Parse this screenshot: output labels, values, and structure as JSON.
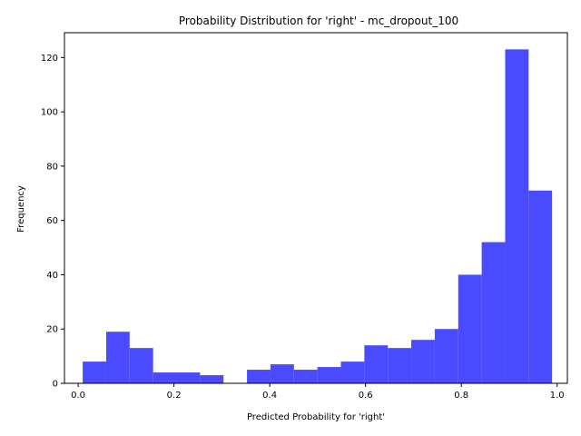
{
  "chart_data": {
    "type": "histogram",
    "title": "Probability Distribution for 'right' - mc_dropout_100",
    "xlabel": "Predicted Probability for 'right'",
    "ylabel": "Frequency",
    "xlim": [
      -0.0286,
      1.0214
    ],
    "ylim": [
      0,
      129.15
    ],
    "xticks": [
      0.0,
      0.2,
      0.4,
      0.6,
      0.8,
      1.0
    ],
    "xtick_labels": [
      "0.0",
      "0.2",
      "0.4",
      "0.6",
      "0.8",
      "1.0"
    ],
    "yticks": [
      0,
      20,
      40,
      60,
      80,
      100,
      120
    ],
    "ytick_labels": [
      "0",
      "20",
      "40",
      "60",
      "80",
      "100",
      "120"
    ],
    "bin_edges": [
      0.0095,
      0.0585,
      0.1075,
      0.1565,
      0.2055,
      0.2545,
      0.3035,
      0.3525,
      0.4015,
      0.4505,
      0.4995,
      0.5485,
      0.5975,
      0.6465,
      0.6955,
      0.7445,
      0.7935,
      0.8425,
      0.8915,
      0.9405,
      0.9895
    ],
    "values": [
      8,
      19,
      13,
      4,
      4,
      3,
      0,
      5,
      7,
      5,
      6,
      8,
      14,
      13,
      16,
      20,
      40,
      52,
      123,
      71
    ],
    "bar_color": "#4a4aff",
    "grid": false,
    "legend": "none"
  }
}
